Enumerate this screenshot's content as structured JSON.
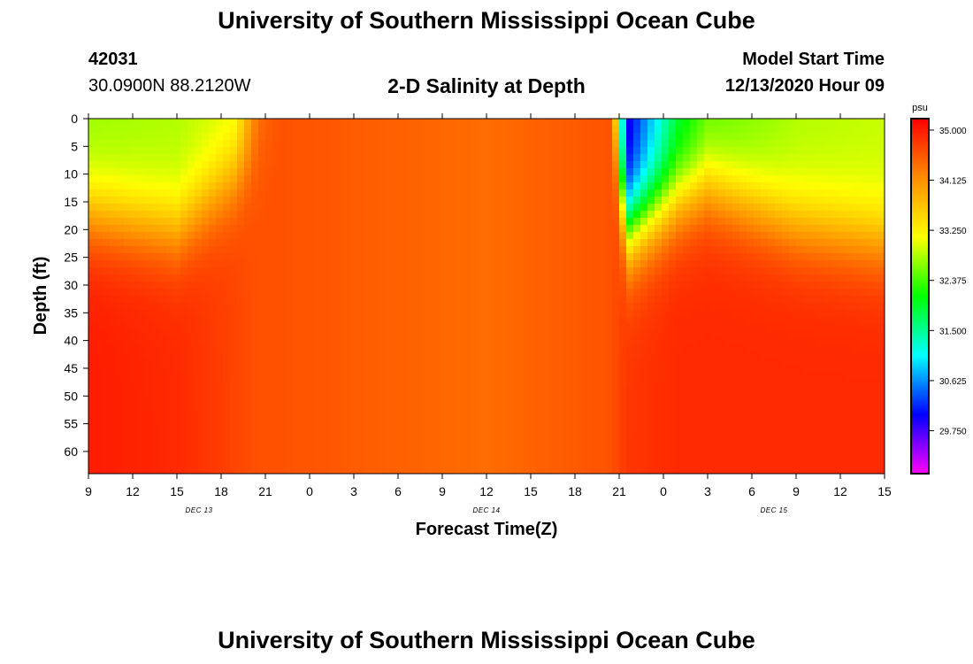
{
  "header": {
    "title": "University of Southern Mississippi Ocean Cube",
    "station_id": "42031",
    "coordinates": "30.0900N 88.2120W",
    "chart_title": "2-D Salinity at Depth",
    "model_start_label": "Model Start Time",
    "model_start_value": "12/13/2020 Hour 09"
  },
  "footer": {
    "title": "University of Southern Mississippi Ocean Cube"
  },
  "chart_data": {
    "type": "heatmap",
    "title": "2-D Salinity at Depth",
    "xlabel": "Forecast Time(Z)",
    "ylabel": "Depth (ft)",
    "x_range_hours": [
      0,
      54
    ],
    "x_tick_labels": [
      "9",
      "12",
      "15",
      "18",
      "21",
      "0",
      "3",
      "6",
      "9",
      "12",
      "15",
      "18",
      "21",
      "0",
      "3",
      "6",
      "9",
      "12",
      "15"
    ],
    "day_labels": [
      {
        "text": "DEC 13",
        "hour": 7.5
      },
      {
        "text": "DEC 14",
        "hour": 27
      },
      {
        "text": "DEC 15",
        "hour": 46.5
      }
    ],
    "ylim": [
      0,
      64
    ],
    "y_ticks": [
      0,
      5,
      10,
      15,
      20,
      25,
      30,
      35,
      40,
      45,
      50,
      55,
      60
    ],
    "colorbar": {
      "unit": "psu",
      "range": [
        29.0,
        35.2
      ],
      "tick_labels": [
        "35.000",
        "34.125",
        "33.250",
        "32.375",
        "31.500",
        "30.625",
        "29.750"
      ],
      "tick_values": [
        35.0,
        34.125,
        33.25,
        32.375,
        31.5,
        30.625,
        29.75
      ],
      "colors": [
        "#ff00ff",
        "#0000ff",
        "#00ffff",
        "#00ff00",
        "#ffff00",
        "#ff8c00",
        "#ff0000"
      ]
    },
    "salinity_profiles": [
      {
        "hour": 0,
        "mixed_layer_psu": 32.7,
        "deep_psu": 35.0,
        "interface_depth_ft": 17
      },
      {
        "hour": 6,
        "mixed_layer_psu": 32.8,
        "deep_psu": 34.9,
        "interface_depth_ft": 20
      },
      {
        "hour": 10,
        "mixed_layer_psu": 33.0,
        "deep_psu": 34.7,
        "interface_depth_ft": 10
      },
      {
        "hour": 11.5,
        "mixed_layer_psu": 34.3,
        "deep_psu": 34.6,
        "interface_depth_ft": 5
      },
      {
        "hour": 13,
        "mixed_layer_psu": 34.6,
        "deep_psu": 34.6,
        "interface_depth_ft": 0
      },
      {
        "hour": 27,
        "mixed_layer_psu": 34.4,
        "deep_psu": 34.4,
        "interface_depth_ft": 0
      },
      {
        "hour": 35.5,
        "mixed_layer_psu": 34.6,
        "deep_psu": 34.6,
        "interface_depth_ft": 0
      },
      {
        "hour": 36.5,
        "mixed_layer_psu": 29.8,
        "deep_psu": 34.8,
        "interface_depth_ft": 20
      },
      {
        "hour": 40,
        "mixed_layer_psu": 31.8,
        "deep_psu": 34.9,
        "interface_depth_ft": 14
      },
      {
        "hour": 42,
        "mixed_layer_psu": 32.4,
        "deep_psu": 34.9,
        "interface_depth_ft": 12
      },
      {
        "hour": 48,
        "mixed_layer_psu": 32.8,
        "deep_psu": 34.9,
        "interface_depth_ft": 19
      },
      {
        "hour": 54,
        "mixed_layer_psu": 32.9,
        "deep_psu": 34.9,
        "interface_depth_ft": 22
      }
    ]
  }
}
